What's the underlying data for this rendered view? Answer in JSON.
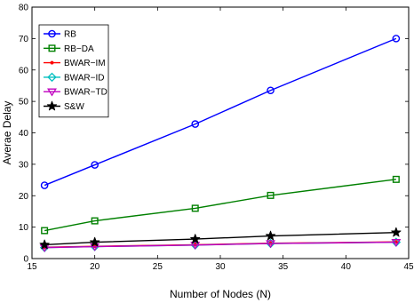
{
  "chart_data": {
    "type": "line",
    "title": "",
    "xlabel": "Number of Nodes (N)",
    "ylabel": "Averae Delay",
    "xlim": [
      15,
      45
    ],
    "ylim": [
      0,
      80
    ],
    "xticks": [
      15,
      20,
      25,
      30,
      35,
      40,
      45
    ],
    "yticks": [
      0,
      10,
      20,
      30,
      40,
      50,
      60,
      70,
      80
    ],
    "grid": false,
    "legend_position": "top-left",
    "x": [
      16,
      20,
      28,
      34,
      44
    ],
    "series": [
      {
        "name": "RB",
        "color": "#0000ff",
        "marker": "circle",
        "values": [
          23.3,
          29.8,
          42.8,
          53.5,
          70.0
        ]
      },
      {
        "name": "RB−DA",
        "color": "#008000",
        "marker": "square",
        "values": [
          8.9,
          12.0,
          16.0,
          20.1,
          25.2
        ]
      },
      {
        "name": "BWAR−IM",
        "color": "#ff0000",
        "marker": "point",
        "values": [
          3.6,
          3.9,
          4.4,
          4.9,
          5.3
        ]
      },
      {
        "name": "BWAR−ID",
        "color": "#00bfbf",
        "marker": "diamond",
        "values": [
          3.5,
          3.8,
          4.3,
          4.8,
          5.2
        ]
      },
      {
        "name": "BWAR−TD",
        "color": "#bf00bf",
        "marker": "triangle-down",
        "values": [
          3.5,
          3.8,
          4.3,
          4.8,
          5.2
        ]
      },
      {
        "name": "S&W",
        "color": "#000000",
        "marker": "star",
        "values": [
          4.4,
          5.2,
          6.2,
          7.2,
          8.3
        ]
      }
    ]
  }
}
